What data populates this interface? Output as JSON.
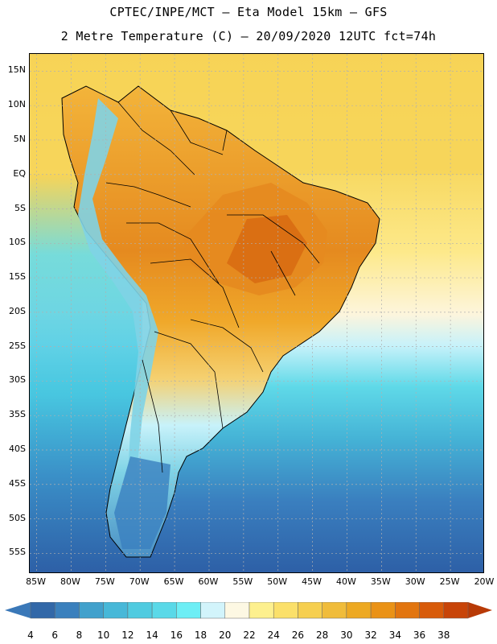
{
  "header": {
    "line1": "CPTEC/INPE/MCT –  Eta Model 15km – GFS",
    "line2": "2 Metre Temperature (C) – 20/09/2020 12UTC fct=74h"
  },
  "map": {
    "lat_range": [
      -58,
      17.5
    ],
    "lon_range": [
      -86,
      -20
    ],
    "lat_labels": [
      "15N",
      "10N",
      "5N",
      "EQ",
      "5S",
      "10S",
      "15S",
      "20S",
      "25S",
      "30S",
      "35S",
      "40S",
      "45S",
      "50S",
      "55S"
    ],
    "lat_values": [
      15,
      10,
      5,
      0,
      -5,
      -10,
      -15,
      -20,
      -25,
      -30,
      -35,
      -40,
      -45,
      -50,
      -55
    ],
    "lon_labels": [
      "85W",
      "80W",
      "75W",
      "70W",
      "65W",
      "60W",
      "55W",
      "50W",
      "45W",
      "40W",
      "35W",
      "30W",
      "25W",
      "20W"
    ],
    "lon_values": [
      -85,
      -80,
      -75,
      -70,
      -65,
      -60,
      -55,
      -50,
      -45,
      -40,
      -35,
      -30,
      -25,
      -20
    ],
    "field": "2 Metre Temperature (C)",
    "colors": {
      "ocean_south_deep": "#2d5fa6",
      "ocean_south": "#3a7fbf",
      "ocean_mid": "#45b3d6",
      "ocean_cyan": "#5fd9e8",
      "ocean_light": "#c8f2fa",
      "ocean_cream": "#fdf5dc",
      "ocean_yellow": "#fde98a",
      "ocean_north": "#f7d356",
      "land_hot": "#e58a1f",
      "land_warm": "#f0a82a",
      "land_mild": "#f5c54a",
      "land_core": "#d76a12",
      "andes_cold": "#7fd3e6",
      "patagonia": "#4a8fc4",
      "grid": "#b0b0b0",
      "coast": "#000000"
    }
  },
  "colorbar": {
    "labels": [
      "4",
      "6",
      "8",
      "10",
      "12",
      "14",
      "16",
      "18",
      "20",
      "22",
      "24",
      "26",
      "28",
      "30",
      "32",
      "34",
      "36",
      "38"
    ],
    "colors": [
      "#3268a8",
      "#3a80bd",
      "#41a1cc",
      "#47b8d8",
      "#4fcbe0",
      "#5ad9e8",
      "#6deef5",
      "#d2f4fb",
      "#fdf8e3",
      "#fdf08e",
      "#fbe06a",
      "#f6cf4f",
      "#f0bc3a",
      "#eda922",
      "#ea9216",
      "#e2750f",
      "#d85b0a",
      "#c84408"
    ],
    "low_color": "#3a78b8",
    "high_color": "#b83a06"
  }
}
